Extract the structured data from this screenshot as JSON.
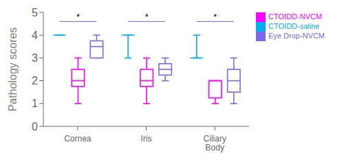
{
  "chart_data": {
    "type": "box",
    "categories": [
      "Cornea",
      "Iris",
      "Ciliary\nBody"
    ],
    "ylabel": "Pathology scores",
    "series": [
      {
        "name": "CTOIDD-saline",
        "color": "#00AEEF",
        "medians": [
          4.0,
          4.0,
          3.0
        ],
        "q1": [
          4.0,
          4.0,
          3.0
        ],
        "q3": [
          4.0,
          4.0,
          3.0
        ],
        "whislo": [
          4.0,
          3.0,
          3.0
        ],
        "whishi": [
          4.0,
          4.0,
          4.0
        ]
      },
      {
        "name": "CTOIDD-NVCM",
        "color": "#FF00FF",
        "medians": [
          2.0,
          2.0,
          2.0
        ],
        "q1": [
          1.75,
          1.75,
          1.25
        ],
        "q3": [
          2.5,
          2.5,
          2.0
        ],
        "whislo": [
          1.0,
          1.0,
          1.0
        ],
        "whishi": [
          3.0,
          3.0,
          2.0
        ]
      },
      {
        "name": "Eye Drop-NVCM",
        "color": "#7B68EE",
        "medians": [
          3.5,
          2.5,
          2.0
        ],
        "q1": [
          3.0,
          2.25,
          1.5
        ],
        "q3": [
          3.75,
          2.75,
          2.5
        ],
        "whislo": [
          3.0,
          2.0,
          1.0
        ],
        "whishi": [
          4.0,
          3.0,
          3.0
        ]
      }
    ],
    "annotations": [
      {
        "category": "Cornea",
        "from": "CTOIDD-saline",
        "to": "Eye Drop-NVCM",
        "y": 4.6,
        "text": "*",
        "color": "#8080CC"
      },
      {
        "category": "Iris",
        "from": "CTOIDD-saline",
        "to": "Eye Drop-NVCM",
        "y": 4.6,
        "text": "*",
        "color": "#8080CC"
      },
      {
        "category": "Ciliary\nBody",
        "from": "CTOIDD-saline",
        "to": "Eye Drop-NVCM",
        "y": 4.6,
        "text": "*",
        "color": "#8080CC"
      }
    ],
    "ylim": [
      0,
      5
    ],
    "yticks": [
      0,
      1,
      2,
      3,
      4,
      5
    ],
    "grid": false,
    "legend": "right"
  }
}
